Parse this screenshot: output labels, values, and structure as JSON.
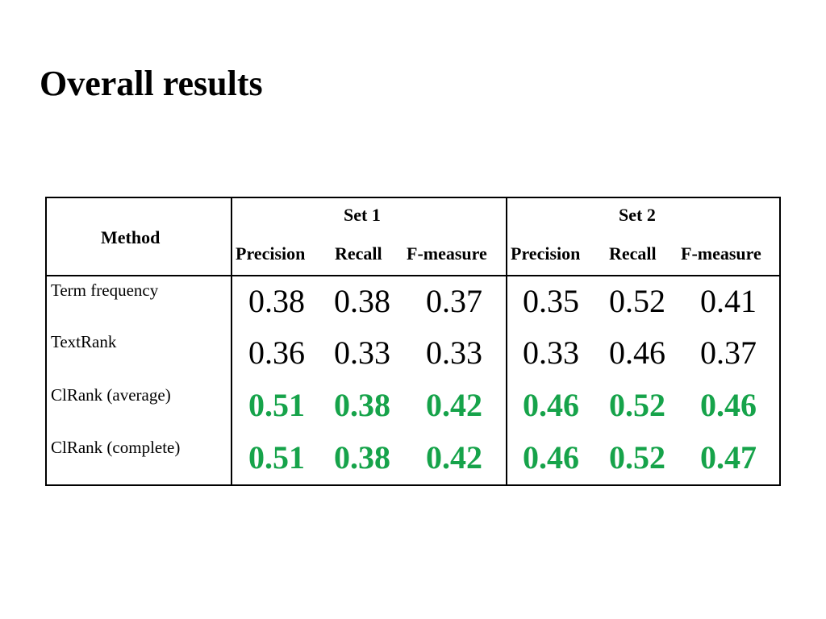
{
  "title": "Overall results",
  "table": {
    "method_header": "Method",
    "groups": [
      "Set 1",
      "Set 2"
    ],
    "metrics": [
      "Precision",
      "Recall",
      "F-measure"
    ],
    "highlight_color": "#16a34a",
    "rows": [
      {
        "method": "Term frequency",
        "highlight": false,
        "values": [
          "0.38",
          "0.38",
          "0.37",
          "0.35",
          "0.52",
          "0.41"
        ]
      },
      {
        "method": "TextRank",
        "highlight": false,
        "values": [
          "0.36",
          "0.33",
          "0.33",
          "0.33",
          "0.46",
          "0.37"
        ]
      },
      {
        "method": "ClRank (average)",
        "highlight": true,
        "values": [
          "0.51",
          "0.38",
          "0.42",
          "0.46",
          "0.52",
          "0.46"
        ]
      },
      {
        "method": "ClRank (complete)",
        "highlight": true,
        "values": [
          "0.51",
          "0.38",
          "0.42",
          "0.46",
          "0.52",
          "0.47"
        ]
      }
    ]
  }
}
